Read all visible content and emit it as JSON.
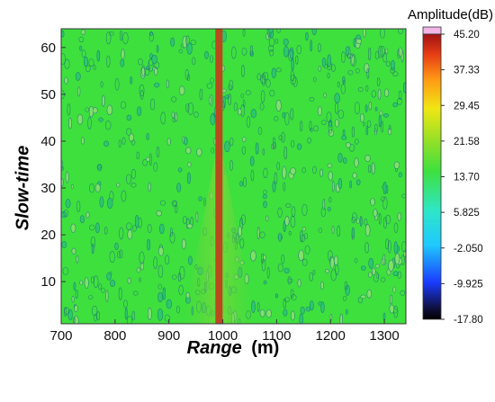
{
  "chart_data": {
    "type": "heatmap",
    "xlabel": "Range",
    "xunit": "(m)",
    "ylabel": "Slow-time",
    "xlim": [
      700,
      1340
    ],
    "ylim": [
      1,
      64
    ],
    "xticks": [
      "700",
      "800",
      "900",
      "1000",
      "1100",
      "1200",
      "1300"
    ],
    "yticks": [
      "10",
      "20",
      "30",
      "40",
      "50",
      "60"
    ],
    "colorbar": {
      "title": "Amplitude(dB)",
      "min": -17.8,
      "max": 45.2,
      "ticks": [
        "45.20",
        "37.33",
        "29.45",
        "21.58",
        "13.70",
        "5.825",
        "-2.050",
        "-9.925",
        "-17.80"
      ]
    },
    "background_level_db": 16,
    "target": {
      "range_m": 993,
      "level_db": 40
    },
    "colors": {
      "background": "#3ee03e",
      "target": "#b84a1e",
      "contour": "#1f6b7a"
    }
  }
}
